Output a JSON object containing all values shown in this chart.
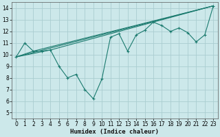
{
  "xlabel": "Humidex (Indice chaleur)",
  "ylabel": "",
  "bg_color": "#cce8ea",
  "grid_color": "#aacdd0",
  "line_color": "#1a7a6e",
  "xlim": [
    -0.5,
    23.5
  ],
  "ylim": [
    4.5,
    14.5
  ],
  "xtick_labels": [
    "0",
    "1",
    "2",
    "3",
    "4",
    "5",
    "6",
    "7",
    "8",
    "9",
    "10",
    "11",
    "12",
    "13",
    "14",
    "15",
    "16",
    "17",
    "18",
    "19",
    "20",
    "21",
    "22",
    "23"
  ],
  "xticks": [
    0,
    1,
    2,
    3,
    4,
    5,
    6,
    7,
    8,
    9,
    10,
    11,
    12,
    13,
    14,
    15,
    16,
    17,
    18,
    19,
    20,
    21,
    22,
    23
  ],
  "yticks": [
    5,
    6,
    7,
    8,
    9,
    10,
    11,
    12,
    13,
    14
  ],
  "series1_x": [
    0,
    1,
    2,
    3,
    4,
    5,
    6,
    7,
    8,
    9,
    10,
    11,
    12,
    13,
    14,
    15,
    16,
    17,
    18,
    19,
    20,
    21,
    22,
    23
  ],
  "series1_y": [
    9.8,
    11.0,
    10.3,
    10.3,
    10.4,
    9.0,
    8.0,
    8.3,
    7.0,
    6.2,
    7.9,
    11.5,
    11.8,
    10.3,
    11.7,
    12.1,
    12.8,
    12.5,
    12.0,
    12.3,
    11.9,
    11.1,
    11.7,
    14.2
  ],
  "series2_x": [
    0,
    23
  ],
  "series2_y": [
    9.8,
    14.2
  ],
  "series3_x": [
    0,
    2,
    23
  ],
  "series3_y": [
    9.8,
    10.3,
    14.2
  ],
  "series4_x": [
    0,
    4,
    23
  ],
  "series4_y": [
    9.8,
    10.4,
    14.2
  ]
}
